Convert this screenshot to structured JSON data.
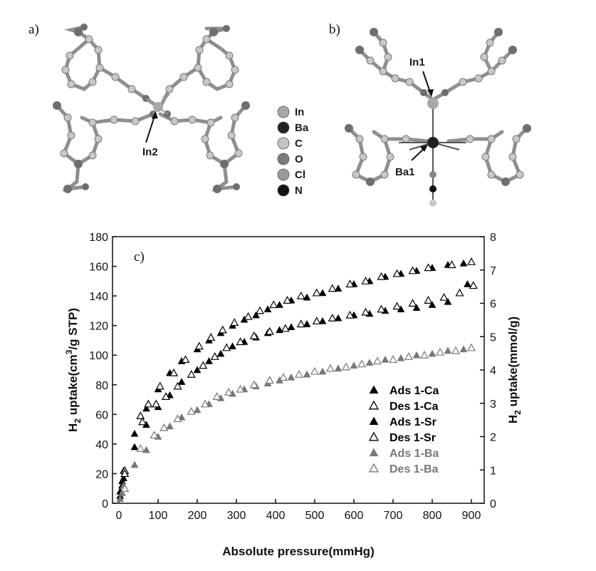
{
  "panels": {
    "a": {
      "label": "a)",
      "callout": "In2"
    },
    "b": {
      "label": "b)",
      "callout_in": "In1",
      "callout_ba": "Ba1"
    },
    "c": {
      "label": "c)"
    }
  },
  "atom_legend": [
    {
      "label": "In",
      "color": "#a8a8a8"
    },
    {
      "label": "Ba",
      "color": "#222222"
    },
    {
      "label": "C",
      "color": "#c4c4c4"
    },
    {
      "label": "O",
      "color": "#7a7a7a"
    },
    {
      "label": "Cl",
      "color": "#9a9a9a"
    },
    {
      "label": "N",
      "color": "#111111"
    }
  ],
  "chart_data": {
    "type": "scatter",
    "xlabel": "Absolute pressure(mmHg)",
    "ylabel_left": {
      "main": "H",
      "sub": "2",
      "rest": " uptake(cm",
      "sup": "3",
      "tail": "/g STP)"
    },
    "ylabel_right": {
      "main": "H",
      "sub": "2",
      "rest": " uptake(mmol/g)"
    },
    "xlim": [
      0,
      900
    ],
    "ylim_left": [
      0,
      180
    ],
    "ylim_right": [
      0,
      8
    ],
    "x_ticks": [
      0,
      100,
      200,
      300,
      400,
      500,
      600,
      700,
      800,
      900
    ],
    "y_left_ticks": [
      0,
      20,
      40,
      60,
      80,
      100,
      120,
      140,
      160,
      180
    ],
    "y_right_ticks": [
      0,
      1,
      2,
      3,
      4,
      5,
      6,
      7,
      8
    ],
    "legend_position": "lower-right",
    "series": [
      {
        "name": "Ads 1-Ca",
        "marker": "filled-triangle",
        "color": "#000000",
        "points": [
          [
            3,
            8
          ],
          [
            8,
            15
          ],
          [
            12,
            22
          ],
          [
            40,
            47
          ],
          [
            70,
            64
          ],
          [
            100,
            77
          ],
          [
            130,
            88
          ],
          [
            160,
            96
          ],
          [
            200,
            104
          ],
          [
            230,
            110
          ],
          [
            260,
            115
          ],
          [
            290,
            120
          ],
          [
            320,
            124
          ],
          [
            350,
            127
          ],
          [
            380,
            131
          ],
          [
            410,
            134
          ],
          [
            440,
            137
          ],
          [
            480,
            139
          ],
          [
            520,
            142
          ],
          [
            560,
            145
          ],
          [
            600,
            148
          ],
          [
            640,
            150
          ],
          [
            680,
            153
          ],
          [
            720,
            155
          ],
          [
            760,
            157
          ],
          [
            800,
            159
          ],
          [
            840,
            161
          ],
          [
            880,
            162
          ]
        ]
      },
      {
        "name": "Des 1-Ca",
        "marker": "open-triangle",
        "color": "#000000",
        "points": [
          [
            900,
            163
          ],
          [
            850,
            161
          ],
          [
            790,
            159
          ],
          [
            750,
            157
          ],
          [
            710,
            155
          ],
          [
            670,
            153
          ],
          [
            630,
            150
          ],
          [
            590,
            148
          ],
          [
            545,
            145
          ],
          [
            505,
            142
          ],
          [
            465,
            140
          ],
          [
            430,
            137
          ],
          [
            395,
            134
          ],
          [
            360,
            130
          ],
          [
            330,
            126
          ],
          [
            295,
            122
          ],
          [
            265,
            117
          ],
          [
            235,
            112
          ],
          [
            205,
            106
          ],
          [
            170,
            97
          ],
          [
            140,
            88
          ],
          [
            105,
            79
          ],
          [
            75,
            67
          ],
          [
            55,
            59
          ],
          [
            15,
            22
          ]
        ]
      },
      {
        "name": "Ads 1-Sr",
        "marker": "filled-triangle",
        "color": "#000000",
        "points": [
          [
            3,
            5
          ],
          [
            8,
            12
          ],
          [
            12,
            17
          ],
          [
            40,
            38
          ],
          [
            70,
            53
          ],
          [
            100,
            65
          ],
          [
            130,
            73
          ],
          [
            160,
            82
          ],
          [
            200,
            90
          ],
          [
            230,
            96
          ],
          [
            260,
            101
          ],
          [
            290,
            106
          ],
          [
            320,
            109
          ],
          [
            350,
            112
          ],
          [
            380,
            115
          ],
          [
            410,
            117
          ],
          [
            440,
            119
          ],
          [
            480,
            121
          ],
          [
            520,
            123
          ],
          [
            560,
            125
          ],
          [
            600,
            127
          ],
          [
            640,
            128
          ],
          [
            680,
            130
          ],
          [
            720,
            131
          ],
          [
            760,
            132
          ],
          [
            800,
            134
          ],
          [
            840,
            136
          ],
          [
            890,
            148
          ]
        ]
      },
      {
        "name": "Des 1-Sr",
        "marker": "open-triangle",
        "color": "#000000",
        "points": [
          [
            905,
            147
          ],
          [
            870,
            142
          ],
          [
            830,
            139
          ],
          [
            790,
            137
          ],
          [
            750,
            135
          ],
          [
            710,
            133
          ],
          [
            670,
            131
          ],
          [
            630,
            129
          ],
          [
            590,
            127
          ],
          [
            545,
            125
          ],
          [
            505,
            123
          ],
          [
            465,
            121
          ],
          [
            425,
            118
          ],
          [
            385,
            116
          ],
          [
            345,
            113
          ],
          [
            310,
            109
          ],
          [
            275,
            105
          ],
          [
            245,
            99
          ],
          [
            215,
            93
          ],
          [
            185,
            87
          ],
          [
            150,
            79
          ],
          [
            120,
            72
          ],
          [
            95,
            67
          ],
          [
            60,
            55
          ],
          [
            15,
            20
          ]
        ]
      },
      {
        "name": "Ads 1-Ba",
        "marker": "filled-triangle",
        "color": "#777777",
        "points": [
          [
            3,
            3
          ],
          [
            8,
            7
          ],
          [
            12,
            12
          ],
          [
            40,
            26
          ],
          [
            70,
            36
          ],
          [
            100,
            45
          ],
          [
            130,
            52
          ],
          [
            160,
            58
          ],
          [
            200,
            63
          ],
          [
            230,
            67
          ],
          [
            260,
            71
          ],
          [
            290,
            74
          ],
          [
            320,
            77
          ],
          [
            350,
            79
          ],
          [
            380,
            81
          ],
          [
            410,
            83
          ],
          [
            440,
            85
          ],
          [
            480,
            87
          ],
          [
            520,
            89
          ],
          [
            560,
            91
          ],
          [
            600,
            93
          ],
          [
            640,
            95
          ],
          [
            680,
            97
          ],
          [
            720,
            98
          ],
          [
            760,
            100
          ],
          [
            800,
            101
          ],
          [
            840,
            103
          ],
          [
            880,
            104
          ]
        ]
      },
      {
        "name": "Des 1-Ba",
        "marker": "open-triangle",
        "color": "#777777",
        "points": [
          [
            900,
            105
          ],
          [
            860,
            103
          ],
          [
            820,
            102
          ],
          [
            780,
            100
          ],
          [
            740,
            99
          ],
          [
            700,
            97
          ],
          [
            660,
            96
          ],
          [
            620,
            94
          ],
          [
            580,
            92
          ],
          [
            540,
            91
          ],
          [
            500,
            89
          ],
          [
            460,
            87
          ],
          [
            420,
            85
          ],
          [
            385,
            83
          ],
          [
            345,
            80
          ],
          [
            310,
            77
          ],
          [
            280,
            75
          ],
          [
            250,
            72
          ],
          [
            220,
            67
          ],
          [
            185,
            62
          ],
          [
            150,
            57
          ],
          [
            115,
            51
          ],
          [
            90,
            46
          ],
          [
            55,
            37
          ],
          [
            15,
            10
          ]
        ]
      }
    ]
  }
}
